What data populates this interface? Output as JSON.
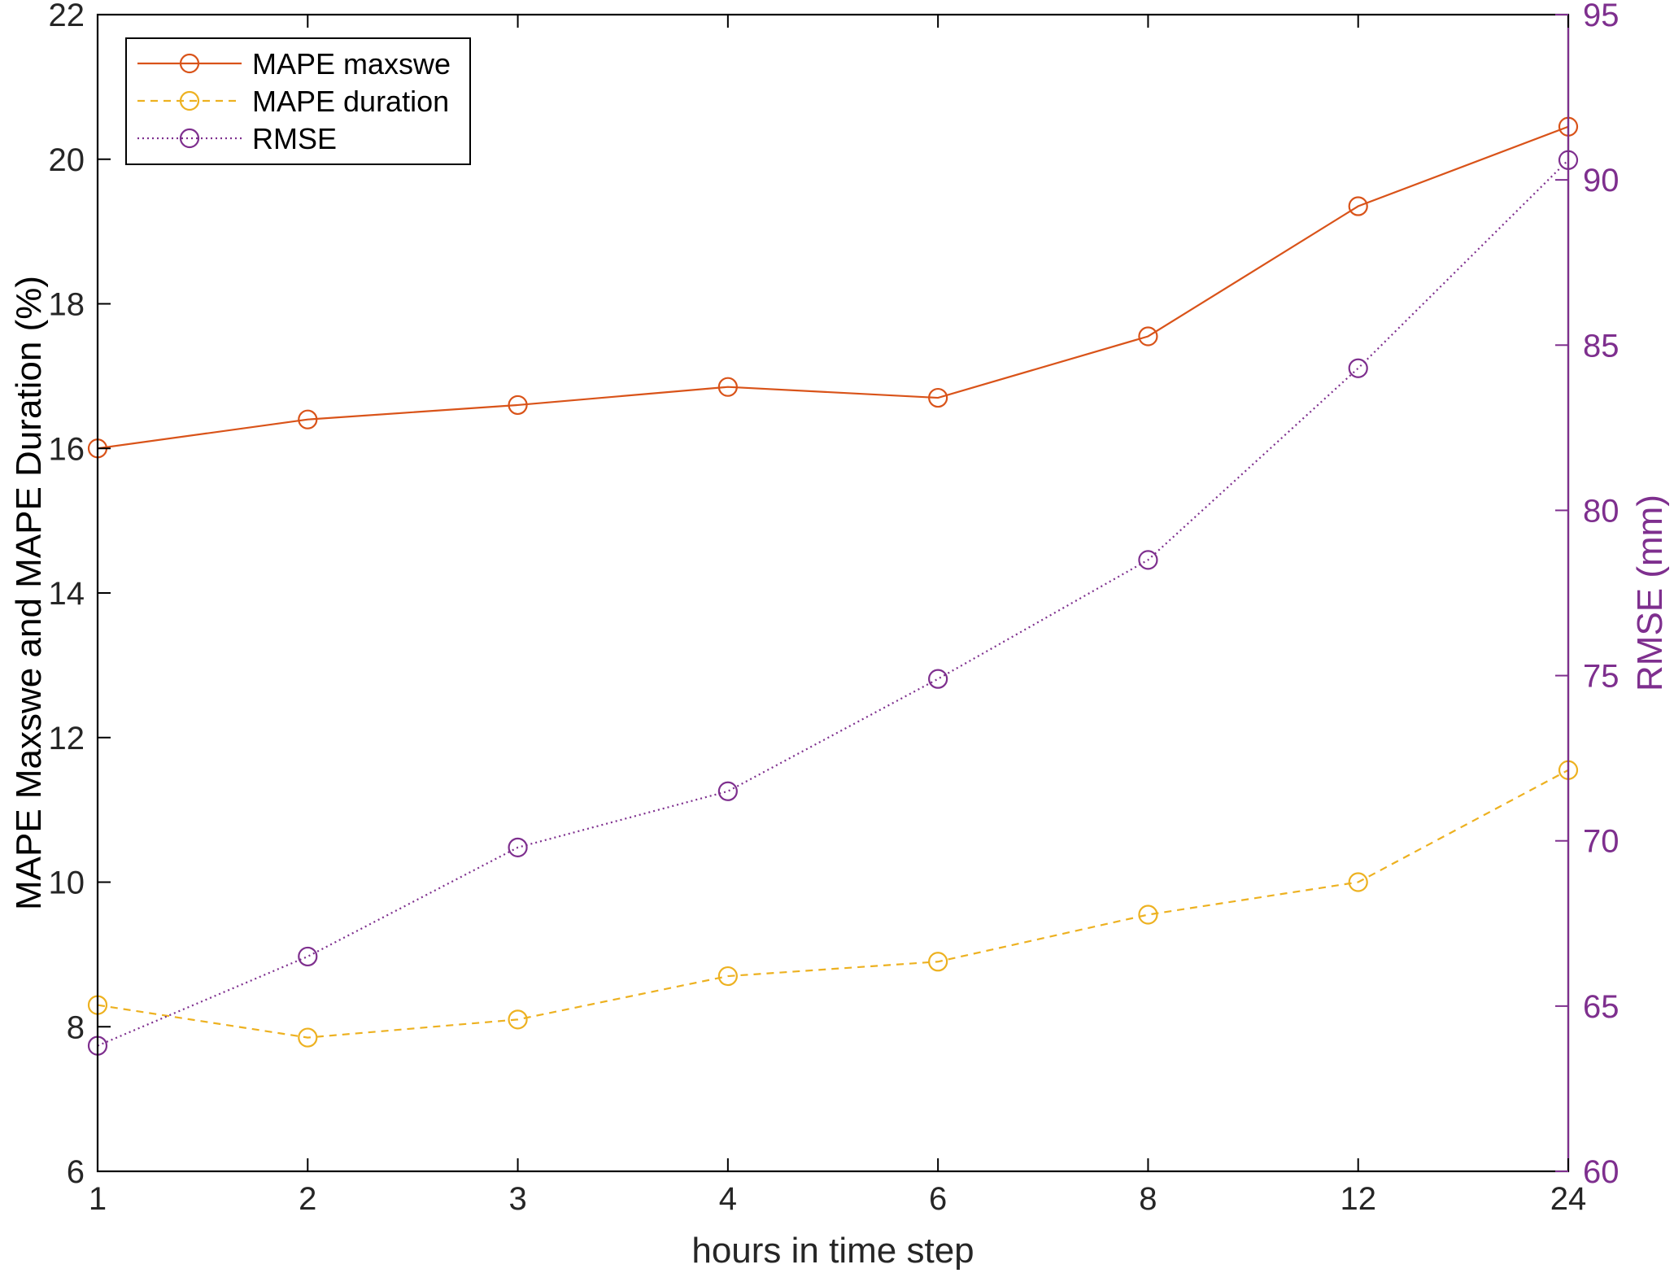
{
  "chart_data": {
    "type": "line",
    "xlabel": "hours in time step",
    "categories": [
      "1",
      "2",
      "3",
      "4",
      "6",
      "8",
      "12",
      "24"
    ],
    "y_left": {
      "label": "MAPE Maxswe and MAPE Duration (%)",
      "lim": [
        6,
        22
      ],
      "ticks": [
        "6",
        "8",
        "10",
        "12",
        "14",
        "16",
        "18",
        "20",
        "22"
      ]
    },
    "y_right": {
      "label": "RMSE (mm)",
      "lim": [
        60,
        95
      ],
      "ticks": [
        "60",
        "65",
        "70",
        "75",
        "80",
        "85",
        "90",
        "95"
      ],
      "color": "#7e2f8e"
    },
    "series": [
      {
        "name": "MAPE maxswe",
        "axis": "left",
        "color": "#d95319",
        "linestyle": "solid",
        "marker": "circle",
        "values": [
          16.0,
          16.4,
          16.6,
          16.85,
          16.7,
          17.55,
          19.35,
          20.45
        ]
      },
      {
        "name": "MAPE duration",
        "axis": "left",
        "color": "#edb120",
        "linestyle": "dashed",
        "marker": "circle",
        "values": [
          8.3,
          7.85,
          8.1,
          8.7,
          8.9,
          9.55,
          10.0,
          11.55
        ]
      },
      {
        "name": "RMSE",
        "axis": "right",
        "color": "#7e2f8e",
        "linestyle": "dotted",
        "marker": "circle",
        "values": [
          63.8,
          66.5,
          69.8,
          71.5,
          74.9,
          78.5,
          84.3,
          90.6
        ]
      }
    ],
    "legend": "top-left",
    "grid": false
  }
}
